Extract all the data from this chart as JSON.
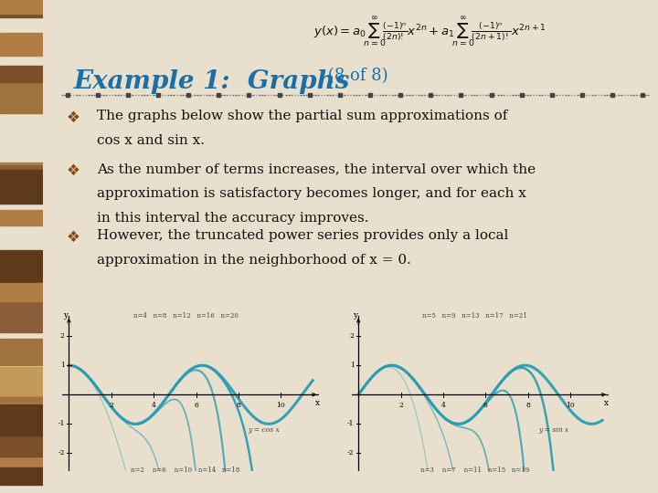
{
  "slide_bg": "#e8e0cc",
  "left_bar_colors": [
    "#7a4f2a",
    "#a0723d",
    "#c49a5a",
    "#5c3a1a",
    "#b07d45",
    "#8b5e3c"
  ],
  "title_text": "Example 1:  Graphs",
  "title_suffix": " (8 of 8)",
  "title_color": "#1a6fa8",
  "title_fontsize": 20,
  "title_suffix_fontsize": 13,
  "divider_color": "#555555",
  "bullet_color": "#8b4513",
  "body_color": "#111111",
  "body_fontsize": 11,
  "formula_color": "#111111",
  "graph_bg": "#dce8f0",
  "graph_line_color": "#2a9db5",
  "cos_top_labels": "n=4   n=8   n=12   n=16   n=20",
  "cos_bot_labels": "n=2    n=6    n=10   n=14   n=18",
  "sin_top_labels": "n=5   n=9   n=13   n=17   n=21",
  "sin_bot_labels": "n=3    n=7    n=11   n=15   n=19",
  "cos_func_label": "y = cos x",
  "sin_func_label": "y = sin x",
  "bullet1_line1": "The graphs below show the partial sum approximations of",
  "bullet1_line2": "cos x and sin x.",
  "bullet2_line1": "As the number of terms increases, the interval over which the",
  "bullet2_line2": "approximation is satisfactory becomes longer, and for each x",
  "bullet2_line3": "in this interval the accuracy improves.",
  "bullet3_line1": "However, the truncated power series provides only a local",
  "bullet3_line2": "approximation in the neighborhood of x = 0."
}
